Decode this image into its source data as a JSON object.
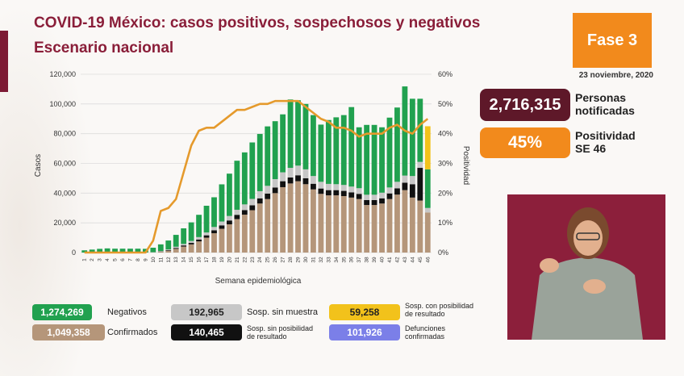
{
  "header": {
    "title": "COVID-19 México: casos positivos, sospechosos y negativos",
    "subtitle": "Escenario nacional",
    "phase": "Fase 3",
    "date": "23 noviembre, 2020"
  },
  "stats": {
    "people_value": "2,716,315",
    "people_label_1": "Personas",
    "people_label_2": "notificadas",
    "positivity_value": "45%",
    "positivity_label_1": "Positividad",
    "positivity_label_2": "SE 46"
  },
  "legend": {
    "negatives_value": "1,274,269",
    "negatives_label": "Negativos",
    "confirmed_value": "1,049,358",
    "confirmed_label": "Confirmados",
    "no_sample_value": "192,965",
    "no_sample_label": "Sosp. sin muestra",
    "no_result_value": "140,465",
    "no_result_label_1": "Sosp. sin posibilidad",
    "no_result_label_2": "de resultado",
    "possible_value": "59,258",
    "possible_label_1": "Sosp. con posibilidad",
    "possible_label_2": "de resultado",
    "deaths_value": "101,926",
    "deaths_label_1": "Defunciones",
    "deaths_label_2": "confirmadas"
  },
  "colors": {
    "confirmados": "#b5967a",
    "sin_posibilidad": "#111111",
    "sin_muestra": "#c7c7c7",
    "negativos": "#21a14f",
    "con_posibilidad": "#f2c21b",
    "defunciones": "#7b7fe8",
    "positividad": "#e59a2c"
  },
  "chart_data": {
    "type": "bar",
    "xlabel": "Semana epidemiológica",
    "ylabel": "Casos",
    "y2label": "Positividad",
    "ylim": [
      0,
      120000
    ],
    "y2lim": [
      0,
      60
    ],
    "yticks": [
      "0",
      "20,000",
      "40,000",
      "60,000",
      "80,000",
      "100,000",
      "120,000"
    ],
    "y2ticks": [
      "0%",
      "10%",
      "20%",
      "30%",
      "40%",
      "50%",
      "60%"
    ],
    "categories": [
      "1",
      "2",
      "3",
      "4",
      "5",
      "6",
      "7",
      "8",
      "9",
      "10",
      "11",
      "12",
      "13",
      "14",
      "15",
      "16",
      "17",
      "18",
      "19",
      "20",
      "21",
      "22",
      "23",
      "24",
      "25",
      "26",
      "27",
      "28",
      "29",
      "30",
      "31",
      "32",
      "33",
      "34",
      "35",
      "36",
      "37",
      "38",
      "39",
      "40",
      "41",
      "42",
      "43",
      "44",
      "45",
      "46"
    ],
    "series": [
      {
        "name": "Confirmados",
        "values": [
          0,
          0,
          0,
          0,
          0,
          0,
          0,
          0,
          0,
          100,
          500,
          1200,
          2500,
          4000,
          5500,
          7500,
          10000,
          13000,
          16000,
          19000,
          22500,
          25500,
          28500,
          33000,
          36000,
          40000,
          44000,
          46500,
          48000,
          46000,
          42500,
          39500,
          38500,
          38500,
          38000,
          37000,
          36000,
          32000,
          32000,
          33000,
          36000,
          39000,
          42000,
          37000,
          35000,
          27000
        ]
      },
      {
        "name": "Sosp. sin posibilidad de resultado",
        "values": [
          0,
          0,
          0,
          0,
          0,
          0,
          0,
          0,
          0,
          50,
          200,
          400,
          600,
          800,
          1000,
          1300,
          1600,
          2000,
          2300,
          2600,
          2900,
          3100,
          3300,
          3500,
          3700,
          3800,
          4000,
          4000,
          4000,
          4000,
          3800,
          3600,
          3500,
          3500,
          3500,
          3500,
          3500,
          3300,
          3300,
          3500,
          3800,
          4200,
          5000,
          9000,
          22000,
          0
        ]
      },
      {
        "name": "Sosp. sin muestra",
        "values": [
          0,
          0,
          0,
          0,
          0,
          0,
          0,
          0,
          0,
          100,
          300,
          500,
          800,
          1000,
          1300,
          1600,
          1900,
          2200,
          2600,
          3000,
          3400,
          3800,
          4300,
          4800,
          5200,
          5600,
          6000,
          6500,
          6500,
          6000,
          5200,
          4500,
          4200,
          4000,
          4000,
          3900,
          3800,
          3600,
          3600,
          3800,
          4000,
          4400,
          4800,
          5500,
          4000,
          3000
        ]
      },
      {
        "name": "Negativos",
        "values": [
          1500,
          2000,
          2500,
          2800,
          2600,
          2600,
          2600,
          2600,
          2500,
          3000,
          4500,
          6000,
          8000,
          10500,
          12500,
          15000,
          18000,
          20000,
          25000,
          28500,
          33000,
          35000,
          38000,
          38500,
          40000,
          39000,
          39000,
          46000,
          44000,
          44000,
          41000,
          38500,
          43000,
          45000,
          47000,
          53500,
          41000,
          47000,
          47000,
          44000,
          47000,
          50000,
          60000,
          52000,
          42500,
          26000
        ]
      },
      {
        "name": "Sosp. con posibilidad de resultado",
        "values": [
          0,
          0,
          0,
          0,
          0,
          0,
          0,
          0,
          0,
          0,
          0,
          0,
          0,
          0,
          0,
          0,
          0,
          0,
          0,
          0,
          0,
          0,
          0,
          0,
          0,
          0,
          0,
          0,
          0,
          0,
          0,
          0,
          0,
          0,
          0,
          0,
          0,
          0,
          0,
          0,
          0,
          0,
          0,
          0,
          0,
          29000
        ]
      },
      {
        "name": "Positividad",
        "axis": "right",
        "unit": "%",
        "values": [
          0,
          0,
          0,
          0,
          0,
          0,
          0,
          0,
          0,
          4,
          14,
          15,
          18,
          27,
          36,
          41,
          42,
          42,
          44,
          46,
          48,
          48,
          49,
          50,
          50,
          51,
          51,
          51,
          51,
          49,
          47,
          45,
          44,
          42,
          42,
          41,
          39,
          40,
          40,
          40,
          42,
          43,
          41,
          40,
          43,
          45
        ]
      }
    ]
  }
}
